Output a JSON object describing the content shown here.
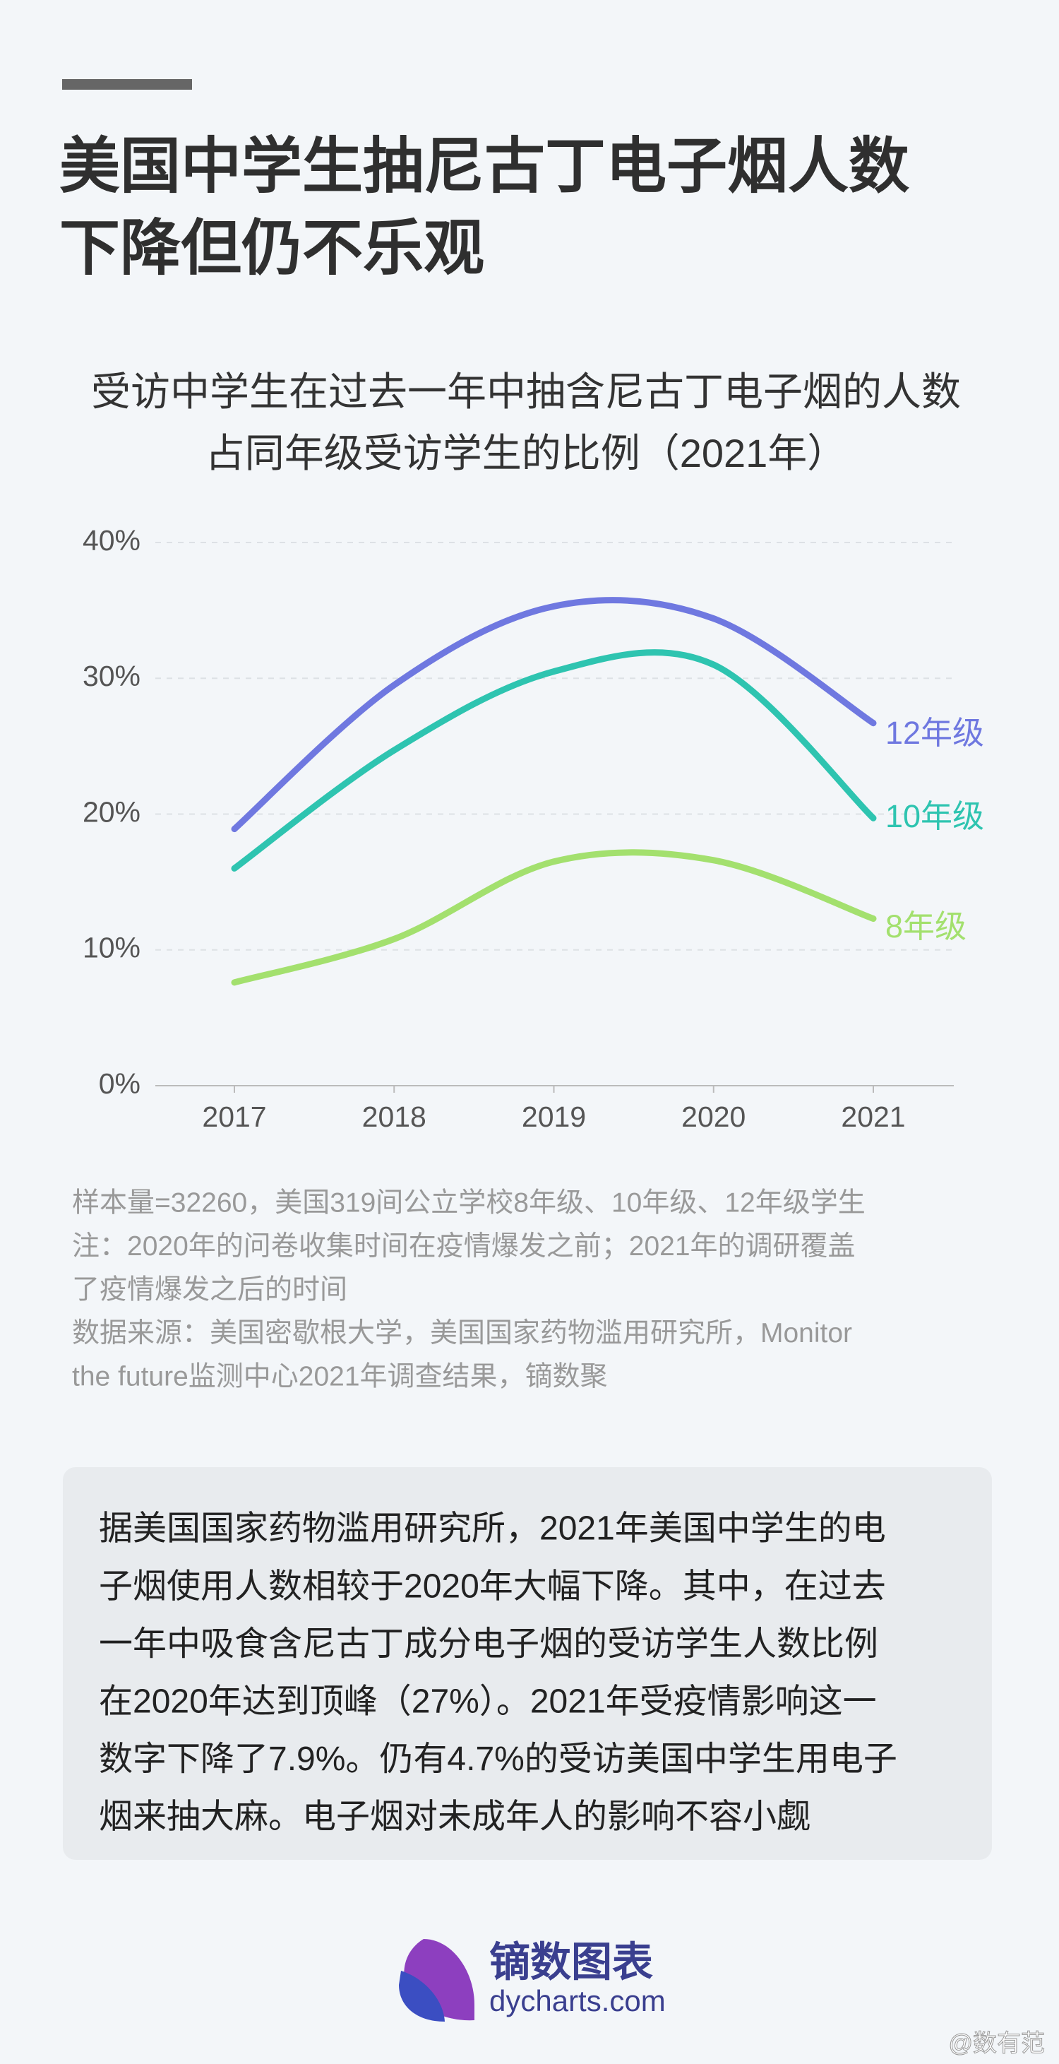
{
  "header": {
    "title_lines": [
      "美国中学生抽尼古丁电子烟人数",
      "下降但仍不乐观"
    ]
  },
  "chart_data": {
    "type": "line",
    "subtitle_lines": [
      "受访中学生在过去一年中抽含尼古丁电子烟的人数",
      "占同年级受访学生的比例（2021年）"
    ],
    "categories": [
      "2017",
      "2018",
      "2019",
      "2020",
      "2021"
    ],
    "series": [
      {
        "name": "12年级",
        "color": "#6f78e0",
        "values": [
          18.9,
          29.5,
          35.3,
          34.4,
          26.7
        ]
      },
      {
        "name": "10年级",
        "color": "#2ec4b0",
        "values": [
          16.0,
          24.7,
          30.5,
          31.0,
          19.7
        ]
      },
      {
        "name": "8年级",
        "color": "#a3e06e",
        "values": [
          7.6,
          10.8,
          16.5,
          16.6,
          12.3
        ]
      }
    ],
    "ylim": [
      0,
      40
    ],
    "yticks": [
      {
        "value": 0,
        "label": "0%"
      },
      {
        "value": 10,
        "label": "10%"
      },
      {
        "value": 20,
        "label": "20%"
      },
      {
        "value": 30,
        "label": "30%"
      },
      {
        "value": 40,
        "label": "40%"
      }
    ],
    "grid": true,
    "smooth": true
  },
  "notes": [
    "样本量=32260，美国319间公立学校8年级、10年级、12年级学生",
    "注：2020年的问卷收集时间在疫情爆发之前；2021年的调研覆盖",
    "了疫情爆发之后的时间",
    "数据来源：美国密歇根大学，美国国家药物滥用研究所，Monitor",
    "the future监测中心2021年调查结果，镝数聚"
  ],
  "summary": [
    "据美国国家药物滥用研究所，2021年美国中学生的电",
    "子烟使用人数相较于2020年大幅下降。其中，在过去",
    "一年中吸食含尼古丁成分电子烟的受访学生人数比例",
    "在2020年达到顶峰（27%）。2021年受疫情影响这一",
    "数字下降了7.9%。仍有4.7%的受访美国中学生用电子",
    "烟来抽大麻。电子烟对未成年人的影响不容小觑"
  ],
  "footer": {
    "brand": "镝数图表",
    "site": "dycharts.com",
    "credit": "@数有范"
  }
}
